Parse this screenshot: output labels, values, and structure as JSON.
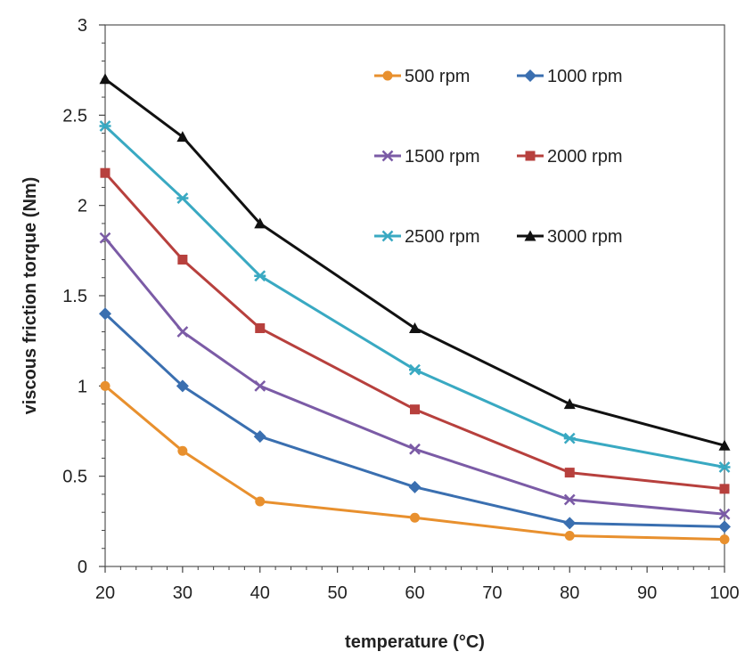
{
  "chart_data": {
    "type": "line",
    "title": "",
    "xlabel": "temperature (°C)",
    "ylabel": "viscous friction torque (Nm)",
    "xlim": [
      20,
      100
    ],
    "ylim": [
      0,
      3
    ],
    "xticks": [
      20,
      30,
      40,
      50,
      60,
      70,
      80,
      90,
      100
    ],
    "yticks": [
      0,
      0.5,
      1,
      1.5,
      2,
      2.5,
      3
    ],
    "ytick_labels": [
      "0",
      "0.5",
      "1",
      "1.5",
      "2",
      "2.5",
      "3"
    ],
    "grid": false,
    "legend_position": "top-right",
    "x": [
      20,
      30,
      40,
      60,
      80,
      100
    ],
    "series": [
      {
        "name": "500 rpm",
        "values": [
          1.0,
          0.64,
          0.36,
          0.27,
          0.17,
          0.15
        ],
        "color": "#E8902E",
        "marker": "circle"
      },
      {
        "name": "1000 rpm",
        "values": [
          1.4,
          1.0,
          0.72,
          0.44,
          0.24,
          0.22
        ],
        "color": "#3A6FB0",
        "marker": "diamond"
      },
      {
        "name": "1500 rpm",
        "values": [
          1.82,
          1.3,
          1.0,
          0.65,
          0.37,
          0.29
        ],
        "color": "#7B5BA6",
        "marker": "x"
      },
      {
        "name": "2000 rpm",
        "values": [
          2.18,
          1.7,
          1.32,
          0.87,
          0.52,
          0.43
        ],
        "color": "#B7403D",
        "marker": "square"
      },
      {
        "name": "2500 rpm",
        "values": [
          2.44,
          2.04,
          1.61,
          1.09,
          0.71,
          0.55
        ],
        "color": "#39A9C2",
        "marker": "star"
      },
      {
        "name": "3000 rpm",
        "values": [
          2.7,
          2.38,
          1.9,
          1.32,
          0.9,
          0.67
        ],
        "color": "#111111",
        "marker": "triangle"
      }
    ]
  }
}
